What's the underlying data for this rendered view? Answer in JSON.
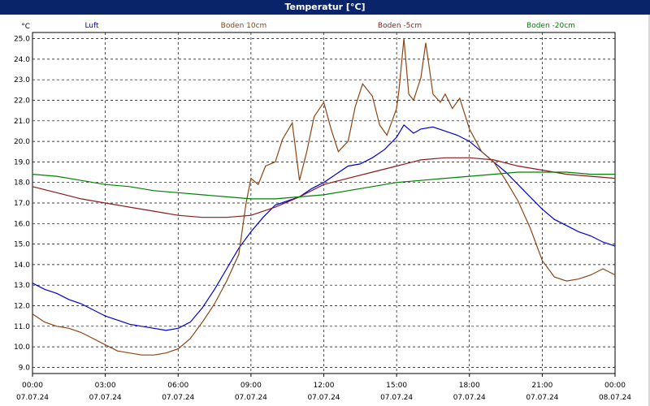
{
  "window": {
    "title": "Temperatur [°C]"
  },
  "chart_data": {
    "type": "line",
    "ylabel": "°C",
    "ylim": [
      9.0,
      25.0
    ],
    "yticks": [
      9.0,
      10.0,
      11.0,
      12.0,
      13.0,
      14.0,
      15.0,
      16.0,
      17.0,
      18.0,
      19.0,
      20.0,
      21.0,
      22.0,
      23.0,
      24.0,
      25.0
    ],
    "xlim": [
      0,
      24
    ],
    "xticks": [
      {
        "t": 0,
        "time": "00:00",
        "date": "07.07.24"
      },
      {
        "t": 3,
        "time": "03:00",
        "date": "07.07.24"
      },
      {
        "t": 6,
        "time": "06:00",
        "date": "07.07.24"
      },
      {
        "t": 9,
        "time": "09:00",
        "date": "07.07.24"
      },
      {
        "t": 12,
        "time": "12:00",
        "date": "07.07.24"
      },
      {
        "t": 15,
        "time": "15:00",
        "date": "07.07.24"
      },
      {
        "t": 18,
        "time": "18:00",
        "date": "07.07.24"
      },
      {
        "t": 21,
        "time": "21:00",
        "date": "07.07.24"
      },
      {
        "t": 24,
        "time": "00:00",
        "date": "08.07.24"
      }
    ],
    "grid": true,
    "legend_position": "top",
    "series": [
      {
        "name": "Luft",
        "color": "#0000cc",
        "points": [
          [
            0,
            13.1
          ],
          [
            0.5,
            12.8
          ],
          [
            1,
            12.6
          ],
          [
            1.5,
            12.3
          ],
          [
            2,
            12.1
          ],
          [
            2.5,
            11.8
          ],
          [
            3,
            11.5
          ],
          [
            3.5,
            11.3
          ],
          [
            4,
            11.1
          ],
          [
            4.5,
            11.0
          ],
          [
            5,
            10.9
          ],
          [
            5.5,
            10.8
          ],
          [
            6,
            10.9
          ],
          [
            6.5,
            11.2
          ],
          [
            7,
            11.9
          ],
          [
            7.5,
            12.8
          ],
          [
            8,
            13.8
          ],
          [
            8.5,
            14.8
          ],
          [
            9,
            15.6
          ],
          [
            9.5,
            16.3
          ],
          [
            10,
            16.9
          ],
          [
            10.5,
            17.1
          ],
          [
            11,
            17.3
          ],
          [
            11.5,
            17.7
          ],
          [
            12,
            18.0
          ],
          [
            12.5,
            18.4
          ],
          [
            13,
            18.8
          ],
          [
            13.5,
            18.9
          ],
          [
            14,
            19.2
          ],
          [
            14.5,
            19.6
          ],
          [
            15,
            20.2
          ],
          [
            15.3,
            20.8
          ],
          [
            15.7,
            20.4
          ],
          [
            16,
            20.6
          ],
          [
            16.5,
            20.7
          ],
          [
            17,
            20.5
          ],
          [
            17.5,
            20.3
          ],
          [
            18,
            20.0
          ],
          [
            18.5,
            19.5
          ],
          [
            19,
            19.0
          ],
          [
            19.5,
            18.5
          ],
          [
            20,
            17.9
          ],
          [
            20.5,
            17.3
          ],
          [
            21,
            16.7
          ],
          [
            21.5,
            16.2
          ],
          [
            22,
            15.9
          ],
          [
            22.5,
            15.6
          ],
          [
            23,
            15.4
          ],
          [
            23.5,
            15.1
          ],
          [
            24,
            14.9
          ]
        ]
      },
      {
        "name": "Boden 10cm",
        "color": "#8b4513",
        "points": [
          [
            0,
            11.6
          ],
          [
            0.5,
            11.2
          ],
          [
            1,
            11.0
          ],
          [
            1.5,
            10.9
          ],
          [
            2,
            10.7
          ],
          [
            2.5,
            10.4
          ],
          [
            3,
            10.1
          ],
          [
            3.5,
            9.8
          ],
          [
            4,
            9.7
          ],
          [
            4.5,
            9.6
          ],
          [
            5,
            9.6
          ],
          [
            5.5,
            9.7
          ],
          [
            6,
            9.9
          ],
          [
            6.5,
            10.4
          ],
          [
            7,
            11.2
          ],
          [
            7.5,
            12.1
          ],
          [
            8,
            13.2
          ],
          [
            8.5,
            14.5
          ],
          [
            8.8,
            17.0
          ],
          [
            9,
            18.2
          ],
          [
            9.3,
            17.9
          ],
          [
            9.6,
            18.8
          ],
          [
            10,
            19.0
          ],
          [
            10.3,
            20.1
          ],
          [
            10.7,
            20.9
          ],
          [
            11,
            18.1
          ],
          [
            11.3,
            19.5
          ],
          [
            11.6,
            21.2
          ],
          [
            12,
            21.9
          ],
          [
            12.3,
            20.6
          ],
          [
            12.6,
            19.5
          ],
          [
            13,
            20.0
          ],
          [
            13.3,
            21.7
          ],
          [
            13.6,
            22.8
          ],
          [
            14,
            22.2
          ],
          [
            14.3,
            20.8
          ],
          [
            14.6,
            20.3
          ],
          [
            15,
            21.6
          ],
          [
            15.1,
            22.5
          ],
          [
            15.3,
            25.0
          ],
          [
            15.5,
            22.3
          ],
          [
            15.7,
            22.0
          ],
          [
            16,
            23.1
          ],
          [
            16.2,
            24.8
          ],
          [
            16.5,
            22.3
          ],
          [
            16.8,
            21.9
          ],
          [
            17,
            22.3
          ],
          [
            17.3,
            21.6
          ],
          [
            17.6,
            22.1
          ],
          [
            18,
            20.6
          ],
          [
            18.5,
            19.5
          ],
          [
            19,
            19.0
          ],
          [
            19.5,
            18.1
          ],
          [
            20,
            17.1
          ],
          [
            20.5,
            15.8
          ],
          [
            21,
            14.2
          ],
          [
            21.5,
            13.4
          ],
          [
            22,
            13.2
          ],
          [
            22.5,
            13.3
          ],
          [
            23,
            13.5
          ],
          [
            23.5,
            13.8
          ],
          [
            24,
            13.5
          ]
        ]
      },
      {
        "name": "Boden -5cm",
        "color": "#8b1a1a",
        "points": [
          [
            0,
            17.8
          ],
          [
            1,
            17.5
          ],
          [
            2,
            17.2
          ],
          [
            3,
            17.0
          ],
          [
            4,
            16.8
          ],
          [
            5,
            16.6
          ],
          [
            6,
            16.4
          ],
          [
            7,
            16.3
          ],
          [
            8,
            16.3
          ],
          [
            9,
            16.4
          ],
          [
            10,
            16.8
          ],
          [
            11,
            17.3
          ],
          [
            12,
            17.9
          ],
          [
            13,
            18.2
          ],
          [
            14,
            18.5
          ],
          [
            15,
            18.8
          ],
          [
            16,
            19.1
          ],
          [
            17,
            19.2
          ],
          [
            18,
            19.2
          ],
          [
            19,
            19.1
          ],
          [
            20,
            18.8
          ],
          [
            21,
            18.6
          ],
          [
            22,
            18.4
          ],
          [
            23,
            18.3
          ],
          [
            24,
            18.2
          ]
        ]
      },
      {
        "name": "Boden -20cm",
        "color": "#008000",
        "points": [
          [
            0,
            18.4
          ],
          [
            1,
            18.3
          ],
          [
            2,
            18.1
          ],
          [
            3,
            17.9
          ],
          [
            4,
            17.8
          ],
          [
            5,
            17.6
          ],
          [
            6,
            17.5
          ],
          [
            7,
            17.4
          ],
          [
            8,
            17.3
          ],
          [
            9,
            17.2
          ],
          [
            10,
            17.2
          ],
          [
            11,
            17.3
          ],
          [
            12,
            17.4
          ],
          [
            13,
            17.6
          ],
          [
            14,
            17.8
          ],
          [
            15,
            18.0
          ],
          [
            16,
            18.1
          ],
          [
            17,
            18.2
          ],
          [
            18,
            18.3
          ],
          [
            19,
            18.4
          ],
          [
            20,
            18.5
          ],
          [
            21,
            18.5
          ],
          [
            22,
            18.5
          ],
          [
            23,
            18.4
          ],
          [
            24,
            18.4
          ]
        ]
      }
    ]
  }
}
